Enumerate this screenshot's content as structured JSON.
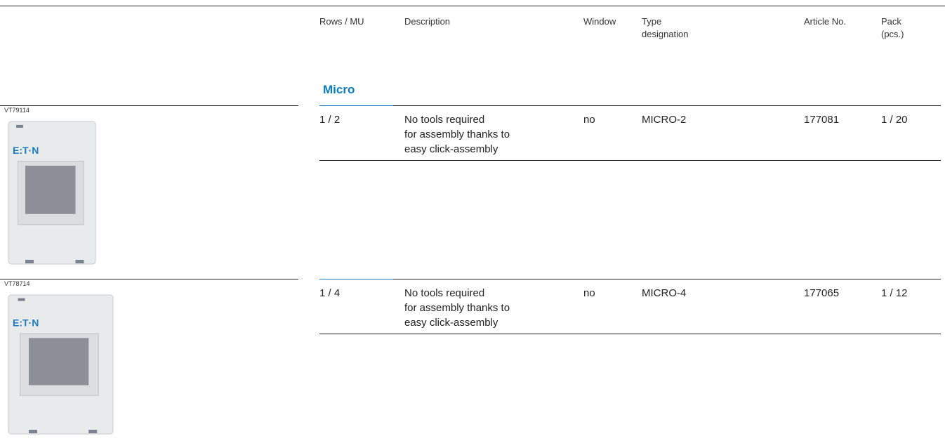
{
  "header": {
    "columns": [
      [
        "Rows / MU"
      ],
      [
        "Description"
      ],
      [
        "Window"
      ],
      [
        "Type",
        "designation"
      ],
      [
        "Article No."
      ],
      [
        "Pack",
        "(pcs.)"
      ]
    ]
  },
  "section": {
    "title": "Micro"
  },
  "products": [
    {
      "image_code": "VT79114",
      "logo": "E:T·N",
      "rows_mu": "1 / 2",
      "description": [
        "No tools required",
        "for assembly thanks to",
        "easy click-assembly"
      ],
      "window": "no",
      "type": "MICRO-2",
      "article": "177081",
      "pack": "1 / 20"
    },
    {
      "image_code": "VT78714",
      "logo": "E:T·N",
      "rows_mu": "1 / 4",
      "description": [
        "No tools required",
        "for assembly thanks to",
        "easy click-assembly"
      ],
      "window": "no",
      "type": "MICRO-4",
      "article": "177065",
      "pack": "1 / 12"
    }
  ]
}
